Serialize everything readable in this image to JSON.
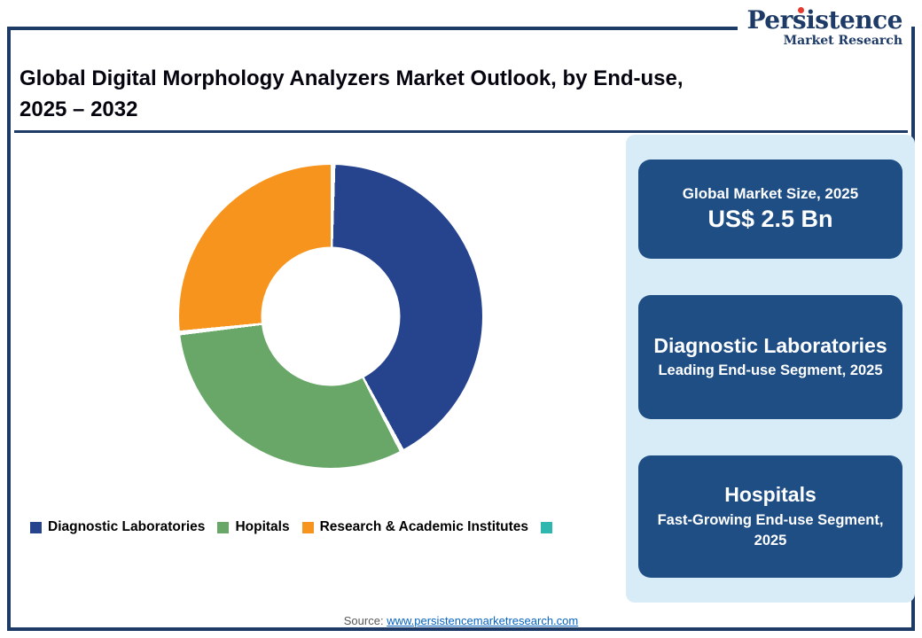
{
  "logo": {
    "part1": "Pers",
    "part2": "i",
    "part3": "stence",
    "tagline": "Market Research"
  },
  "header": {
    "title_line1": "Global Digital Morphology Analyzers Market Outlook, by End-use,",
    "title_line2": "2025 – 2032"
  },
  "chart_data": {
    "type": "pie",
    "subtype": "donut",
    "title": "Global Digital Morphology Analyzers Market Outlook, by End-use, 2025 – 2032",
    "units": "share of market, estimated percent",
    "segments": [
      {
        "label": "Diagnostic Laboratories",
        "value": 42,
        "color": "#26438E"
      },
      {
        "label": "Hopitals",
        "value": 31,
        "color": "#69A769"
      },
      {
        "label": "Research & Academic Institutes",
        "value": 27,
        "color": "#F7941D"
      }
    ],
    "hole_ratio": 0.46,
    "start_angle_deg": 0,
    "legend_position": "bottom",
    "legend": [
      {
        "label": "Diagnostic Laboratories",
        "color": "#26438E"
      },
      {
        "label": "Hopitals",
        "color": "#69A769"
      },
      {
        "label": "Research & Academic Institutes",
        "color": "#F7941D"
      },
      {
        "label": "",
        "color": "#2FB6AF"
      }
    ]
  },
  "panel": {
    "cards": [
      {
        "title": "Global Market Size, 2025",
        "value": "US$ 2.5 Bn"
      },
      {
        "title": "Diagnostic Laboratories",
        "subtitle": "Leading End-use Segment, 2025"
      },
      {
        "title": "Hospitals",
        "subtitle": "Fast-Growing End-use Segment, 2025"
      }
    ]
  },
  "footer": {
    "source_label": "Source:",
    "source_link": "www.persistencemarketresearch.com"
  },
  "colors": {
    "frame": "#1E3A66",
    "card_bg": "#1F4E85",
    "panel_bg": "#D8ECF8",
    "accent_red": "#E63A2E",
    "link": "#0563C1"
  }
}
